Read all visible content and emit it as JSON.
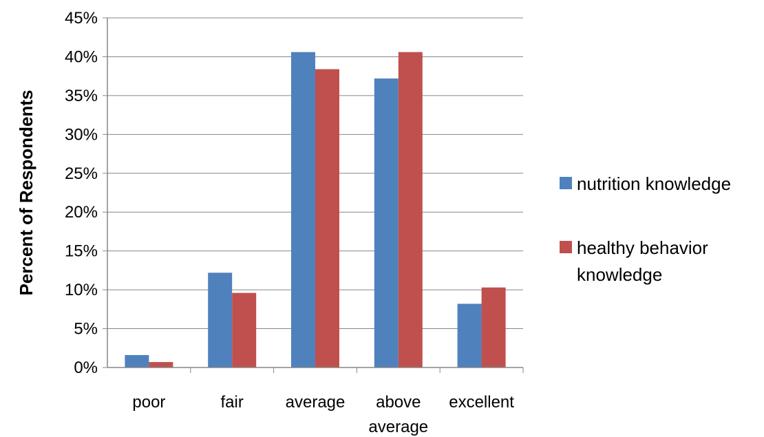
{
  "chart_data": {
    "type": "bar",
    "title": "",
    "xlabel": "",
    "ylabel": "Percent of Respondents",
    "ylim": [
      0,
      45
    ],
    "y_tick_format": "percent",
    "y_ticks": [
      "0%",
      "5%",
      "10%",
      "15%",
      "20%",
      "25%",
      "30%",
      "35%",
      "40%",
      "45%"
    ],
    "grid": true,
    "legend_position": "right",
    "categories": [
      [
        "poor"
      ],
      [
        "fair"
      ],
      [
        "average"
      ],
      [
        "above",
        "average"
      ],
      [
        "excellent"
      ]
    ],
    "series": [
      {
        "name": "nutrition knowledge",
        "legend_lines": [
          "nutrition knowledge"
        ],
        "color": "#4F81BD",
        "values": [
          1.6,
          12.2,
          40.6,
          37.2,
          8.2
        ]
      },
      {
        "name": "healthy behavior knowledge",
        "legend_lines": [
          "healthy behavior",
          "knowledge"
        ],
        "color": "#C0504D",
        "values": [
          0.7,
          9.6,
          38.4,
          40.6,
          10.3
        ]
      }
    ]
  }
}
